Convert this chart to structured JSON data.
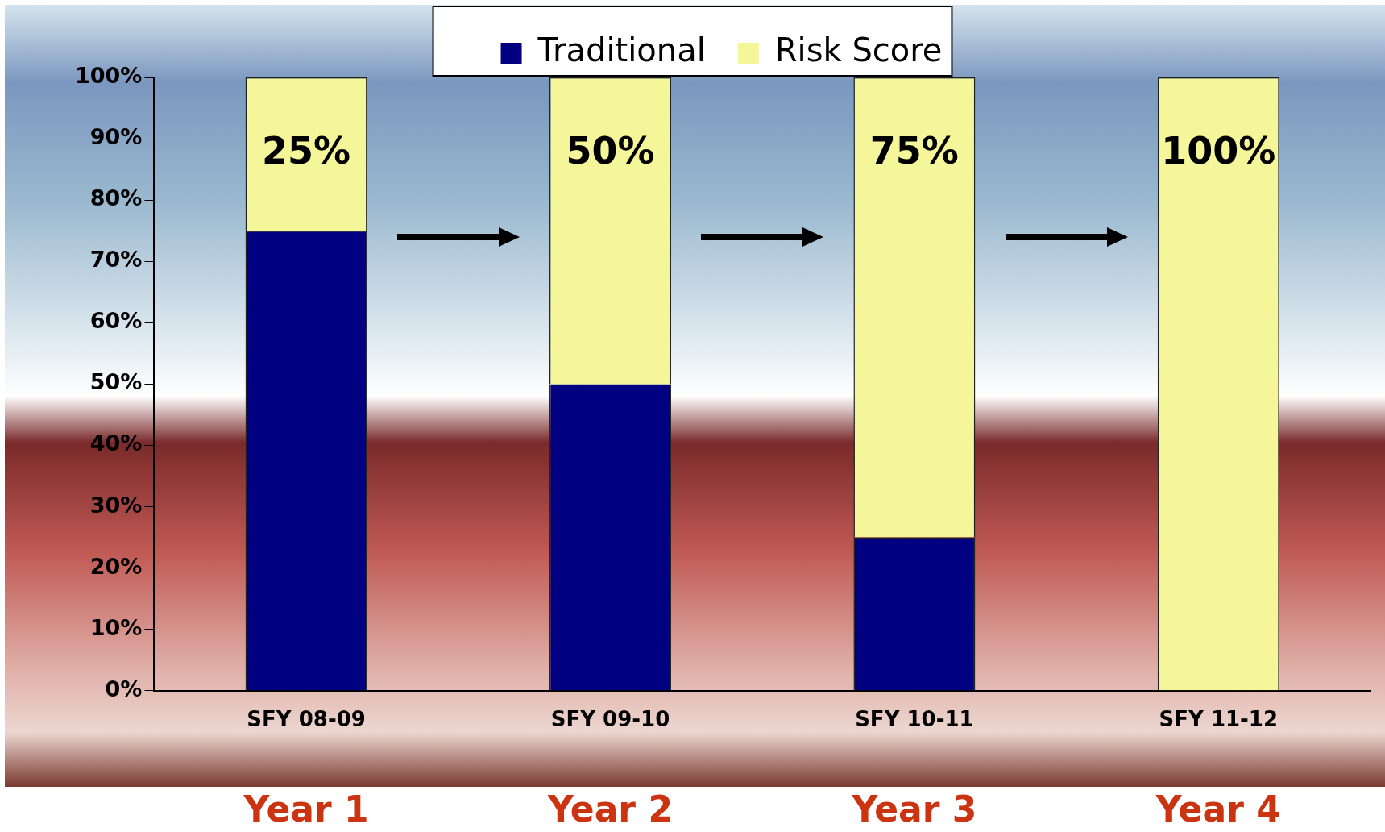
{
  "chart_data": {
    "type": "bar",
    "stacked": true,
    "categories": [
      "SFY 08-09",
      "SFY 09-10",
      "SFY 10-11",
      "SFY 11-12"
    ],
    "series": [
      {
        "name": "Traditional",
        "color": "#000080",
        "values": [
          75,
          50,
          25,
          0
        ]
      },
      {
        "name": "Risk Score",
        "color": "#f5f59a",
        "values": [
          25,
          50,
          75,
          100
        ],
        "value_labels": [
          "25%",
          "50%",
          "75%",
          "100%"
        ]
      }
    ],
    "ylim": [
      0,
      100
    ],
    "yticks": [
      {
        "value": 0,
        "label": "0%"
      },
      {
        "value": 10,
        "label": "10%"
      },
      {
        "value": 20,
        "label": "20%"
      },
      {
        "value": 30,
        "label": "30%"
      },
      {
        "value": 40,
        "label": "40%"
      },
      {
        "value": 50,
        "label": "50%"
      },
      {
        "value": 60,
        "label": "60%"
      },
      {
        "value": 70,
        "label": "70%"
      },
      {
        "value": 80,
        "label": "80%"
      },
      {
        "value": 90,
        "label": "90%"
      },
      {
        "value": 100,
        "label": "100%"
      }
    ],
    "legend": "top",
    "grid": false,
    "annotations": [
      "Year 1",
      "Year 2",
      "Year 3",
      "Year 4"
    ]
  }
}
